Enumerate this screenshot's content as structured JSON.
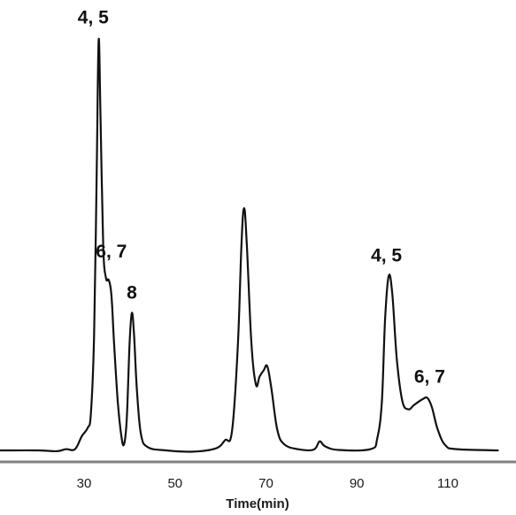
{
  "chart_data": {
    "type": "line",
    "title": "",
    "xlabel": "Time(min)",
    "ylabel": "",
    "xlim": [
      11.5,
      125
    ],
    "ylim": [
      0,
      100
    ],
    "grid": false,
    "x_ticks": [
      30,
      50,
      70,
      90,
      110
    ],
    "x_tick_labels": [
      "30",
      "50",
      "70",
      "90",
      "110"
    ],
    "series": [
      {
        "name": "",
        "points": [
          [
            11.5,
            0.0
          ],
          [
            20,
            0.0
          ],
          [
            24,
            -0.2
          ],
          [
            26,
            0.3
          ],
          [
            28,
            0.3
          ],
          [
            29.5,
            3.5
          ],
          [
            30.8,
            5.5
          ],
          [
            31.5,
            9.0
          ],
          [
            32.2,
            28.0
          ],
          [
            32.8,
            70.0
          ],
          [
            33.2,
            100.0
          ],
          [
            33.6,
            82.0
          ],
          [
            34.2,
            50.0
          ],
          [
            34.8,
            42.0
          ],
          [
            35.4,
            41.5
          ],
          [
            36.0,
            38.0
          ],
          [
            36.6,
            26.0
          ],
          [
            37.4,
            12.0
          ],
          [
            38.2,
            3.5
          ],
          [
            38.8,
            1.5
          ],
          [
            39.4,
            8.0
          ],
          [
            40.0,
            26.0
          ],
          [
            40.5,
            33.5
          ],
          [
            41.0,
            28.0
          ],
          [
            41.6,
            15.0
          ],
          [
            42.5,
            4.0
          ],
          [
            44.0,
            0.8
          ],
          [
            48.0,
            0.0
          ],
          [
            54.0,
            -0.3
          ],
          [
            59.0,
            0.5
          ],
          [
            61.0,
            2.5
          ],
          [
            62.5,
            4.5
          ],
          [
            63.8,
            25.0
          ],
          [
            64.6,
            50.0
          ],
          [
            65.2,
            59.0
          ],
          [
            65.8,
            50.0
          ],
          [
            66.8,
            26.0
          ],
          [
            67.8,
            16.0
          ],
          [
            68.6,
            18.0
          ],
          [
            69.5,
            19.5
          ],
          [
            70.3,
            20.5
          ],
          [
            71.2,
            15.0
          ],
          [
            72.5,
            5.0
          ],
          [
            74.0,
            1.5
          ],
          [
            77.0,
            0.3
          ],
          [
            80.5,
            0.2
          ],
          [
            81.8,
            2.2
          ],
          [
            83.0,
            1.0
          ],
          [
            86.0,
            0.1
          ],
          [
            93.0,
            0.3
          ],
          [
            94.5,
            3.0
          ],
          [
            95.5,
            12.0
          ],
          [
            96.2,
            32.0
          ],
          [
            97.0,
            42.5
          ],
          [
            97.8,
            38.0
          ],
          [
            98.8,
            22.0
          ],
          [
            100.0,
            12.0
          ],
          [
            101.3,
            10.0
          ],
          [
            102.5,
            11.0
          ],
          [
            103.5,
            11.8
          ],
          [
            104.5,
            12.5
          ],
          [
            105.5,
            12.8
          ],
          [
            106.5,
            10.5
          ],
          [
            107.8,
            5.0
          ],
          [
            109.5,
            1.2
          ],
          [
            112.0,
            0.3
          ],
          [
            121.0,
            0.0
          ]
        ]
      }
    ],
    "annotations": [
      {
        "text": "4, 5",
        "x": 32.0,
        "y": 104.0
      },
      {
        "text": "6, 7",
        "x": 36.0,
        "y": 47.0
      },
      {
        "text": "8",
        "x": 40.5,
        "y": 37.0
      },
      {
        "text": "4, 5",
        "x": 96.5,
        "y": 46.0
      },
      {
        "text": "6, 7",
        "x": 106.0,
        "y": 16.5
      }
    ],
    "colors": {
      "line": "#111111",
      "axis": "#7f7f7f"
    }
  }
}
